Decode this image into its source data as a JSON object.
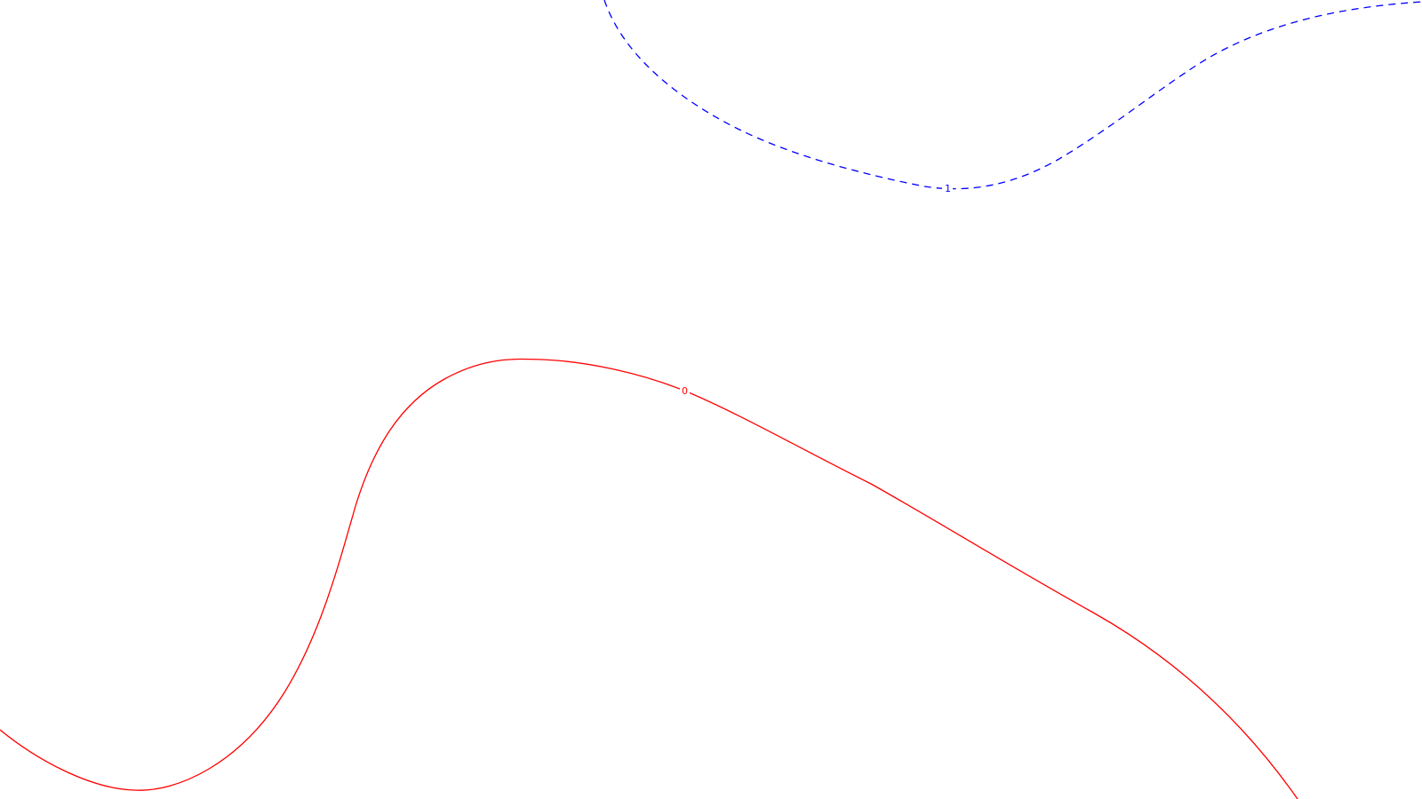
{
  "chart_data": {
    "type": "line",
    "title": "",
    "xlabel": "",
    "ylabel": "",
    "grid": false,
    "legend": "none",
    "series": [
      {
        "label": "1",
        "color": "#0000ff",
        "line_style": "dashed"
      },
      {
        "label": "0",
        "color": "#ff0000",
        "line_style": "solid"
      }
    ]
  }
}
